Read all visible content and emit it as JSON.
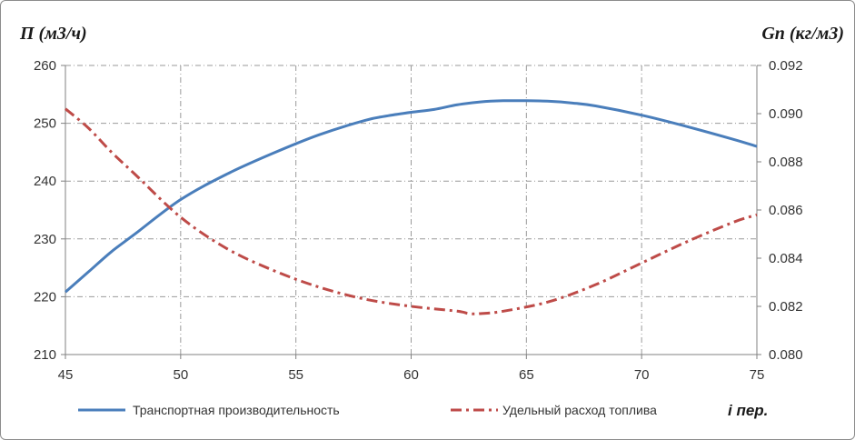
{
  "chart_data": {
    "type": "line",
    "xlabel": "i пер.",
    "ylabel_left": "П (м3/ч)",
    "ylabel_right": "Gп (кг/м3)",
    "grid": true,
    "legend_position": "bottom",
    "x_axis": {
      "min": 45,
      "max": 75,
      "ticks": [
        45,
        50,
        55,
        60,
        65,
        70,
        75
      ],
      "tick_labels": [
        "45",
        "50",
        "55",
        "60",
        "65",
        "70",
        "75"
      ]
    },
    "y_axis_left": {
      "min": 210,
      "max": 260,
      "ticks": [
        210,
        220,
        230,
        240,
        250,
        260
      ],
      "tick_labels": [
        "210",
        "220",
        "230",
        "240",
        "250",
        "260"
      ]
    },
    "y_axis_right": {
      "min": 0.08,
      "max": 0.092,
      "ticks": [
        0.08,
        0.082,
        0.084,
        0.086,
        0.088,
        0.09,
        0.092
      ],
      "tick_labels": [
        "0.080",
        "0.082",
        "0.084",
        "0.086",
        "0.088",
        "0.090",
        "0.092"
      ]
    },
    "series": [
      {
        "name": "Транспортная производительность",
        "axis": "left",
        "color": "#4a7ebb",
        "style": "solid",
        "x": [
          45,
          46,
          47,
          48,
          50,
          52,
          54,
          56,
          58,
          59,
          60,
          61,
          62,
          63,
          64,
          65,
          66,
          67,
          68,
          70,
          72,
          74,
          75
        ],
        "y": [
          220.8,
          224.3,
          227.8,
          230.8,
          236.8,
          241.2,
          244.8,
          248.0,
          250.5,
          251.3,
          251.9,
          252.4,
          253.2,
          253.7,
          253.9,
          253.9,
          253.8,
          253.5,
          253.0,
          251.4,
          249.4,
          247.2,
          246.0
        ]
      },
      {
        "name": "Удельный расход топлива",
        "axis": "right",
        "color": "#be4b48",
        "style": "dash-dot",
        "x": [
          45,
          46,
          47,
          48,
          50,
          52,
          54,
          56,
          58,
          60,
          62,
          62.5,
          63,
          64,
          66,
          68,
          70,
          72,
          74,
          75
        ],
        "y": [
          0.0902,
          0.0894,
          0.0884,
          0.0875,
          0.0857,
          0.0844,
          0.0835,
          0.0828,
          0.0823,
          0.082,
          0.0818,
          0.0817,
          0.0817,
          0.0818,
          0.0822,
          0.0829,
          0.0838,
          0.0847,
          0.0855,
          0.0858
        ]
      }
    ]
  }
}
